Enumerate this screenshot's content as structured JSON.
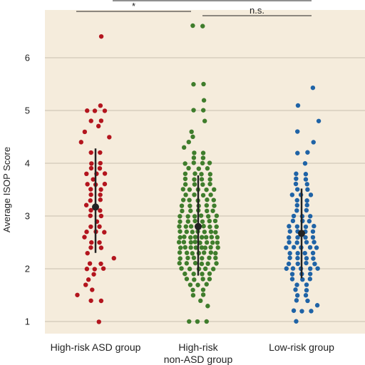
{
  "colors": {
    "plot_background": "#f5ecdc",
    "gridline": "#c9c0b0",
    "axis": "#222222",
    "summary_marker": "#222222"
  },
  "chart_data": {
    "type": "scatter",
    "subtype": "strip plot with mean ± SD",
    "title": "",
    "xlabel": "",
    "ylabel": "Average ISOP Score",
    "ylim": [
      0.85,
      6.95
    ],
    "yticks": [
      1,
      2,
      3,
      4,
      5,
      6
    ],
    "grid": true,
    "categories": [
      "High-risk ASD group",
      "High-risk non-ASD group",
      "Low-risk group"
    ],
    "category_label_lines": [
      [
        "High-risk ASD group"
      ],
      [
        "High-risk",
        "non-ASD group"
      ],
      [
        "Low-risk group"
      ]
    ],
    "series": [
      {
        "category": "High-risk ASD group",
        "color": "#b3151e",
        "mean": 3.17,
        "sd_low": 2.3,
        "sd_high": 4.28,
        "values": [
          6.4,
          5.1,
          5.0,
          5.0,
          5.0,
          4.8,
          4.8,
          4.7,
          4.6,
          4.5,
          4.4,
          4.2,
          4.2,
          4.0,
          4.0,
          3.9,
          3.9,
          3.8,
          3.8,
          3.8,
          3.7,
          3.6,
          3.6,
          3.6,
          3.5,
          3.5,
          3.4,
          3.4,
          3.3,
          3.3,
          3.2,
          3.1,
          3.1,
          3.0,
          3.0,
          2.9,
          2.8,
          2.8,
          2.7,
          2.7,
          2.7,
          2.6,
          2.5,
          2.5,
          2.4,
          2.4,
          2.3,
          2.2,
          2.1,
          2.1,
          2.0,
          2.0,
          2.0,
          1.9,
          1.8,
          1.7,
          1.6,
          1.5,
          1.4,
          1.4,
          1.0
        ]
      },
      {
        "category": "High-risk non-ASD group",
        "color": "#3f7d2c",
        "mean": 2.8,
        "sd_low": 1.87,
        "sd_high": 3.77,
        "values": [
          6.6,
          6.6,
          5.5,
          5.5,
          5.2,
          5.0,
          5.0,
          4.8,
          4.6,
          4.5,
          4.4,
          4.3,
          4.2,
          4.2,
          4.1,
          4.1,
          4.0,
          4.0,
          4.0,
          4.0,
          3.9,
          3.9,
          3.9,
          3.8,
          3.8,
          3.8,
          3.8,
          3.7,
          3.7,
          3.7,
          3.7,
          3.6,
          3.6,
          3.6,
          3.6,
          3.5,
          3.5,
          3.5,
          3.5,
          3.5,
          3.4,
          3.4,
          3.4,
          3.4,
          3.3,
          3.3,
          3.3,
          3.3,
          3.3,
          3.2,
          3.2,
          3.2,
          3.2,
          3.2,
          3.1,
          3.1,
          3.1,
          3.1,
          3.1,
          3.0,
          3.0,
          3.0,
          3.0,
          3.0,
          3.0,
          2.9,
          2.9,
          2.9,
          2.9,
          2.9,
          2.9,
          2.8,
          2.8,
          2.8,
          2.8,
          2.8,
          2.8,
          2.8,
          2.7,
          2.7,
          2.7,
          2.7,
          2.7,
          2.7,
          2.7,
          2.6,
          2.6,
          2.6,
          2.6,
          2.6,
          2.6,
          2.6,
          2.6,
          2.5,
          2.5,
          2.5,
          2.5,
          2.5,
          2.5,
          2.5,
          2.5,
          2.4,
          2.4,
          2.4,
          2.4,
          2.4,
          2.4,
          2.4,
          2.4,
          2.3,
          2.3,
          2.3,
          2.3,
          2.3,
          2.3,
          2.3,
          2.2,
          2.2,
          2.2,
          2.2,
          2.2,
          2.2,
          2.1,
          2.1,
          2.1,
          2.1,
          2.1,
          2.1,
          2.0,
          2.0,
          2.0,
          2.0,
          2.0,
          1.9,
          1.9,
          1.9,
          1.9,
          1.8,
          1.8,
          1.8,
          1.8,
          1.7,
          1.7,
          1.7,
          1.6,
          1.6,
          1.5,
          1.5,
          1.4,
          1.3,
          1.0,
          1.0,
          1.0
        ]
      },
      {
        "category": "Low-risk group",
        "color": "#1f63a6",
        "mean": 2.67,
        "sd_low": 1.82,
        "sd_high": 3.52,
        "values": [
          5.43,
          5.1,
          4.8,
          4.6,
          4.4,
          4.2,
          4.2,
          4.0,
          3.8,
          3.8,
          3.7,
          3.7,
          3.6,
          3.6,
          3.5,
          3.5,
          3.4,
          3.4,
          3.4,
          3.3,
          3.3,
          3.2,
          3.2,
          3.1,
          3.1,
          3.0,
          3.0,
          3.0,
          2.9,
          2.9,
          2.9,
          2.8,
          2.8,
          2.8,
          2.8,
          2.7,
          2.7,
          2.7,
          2.7,
          2.6,
          2.6,
          2.6,
          2.6,
          2.5,
          2.5,
          2.5,
          2.5,
          2.4,
          2.4,
          2.4,
          2.4,
          2.4,
          2.3,
          2.3,
          2.3,
          2.3,
          2.2,
          2.2,
          2.2,
          2.2,
          2.1,
          2.1,
          2.1,
          2.1,
          2.0,
          2.0,
          2.0,
          2.0,
          2.0,
          1.9,
          1.9,
          1.9,
          1.8,
          1.8,
          1.8,
          1.7,
          1.7,
          1.6,
          1.6,
          1.5,
          1.5,
          1.4,
          1.4,
          1.3,
          1.2,
          1.2,
          1.2,
          1.0
        ]
      }
    ],
    "significance": [
      {
        "from": "High-risk ASD group",
        "to": "High-risk non-ASD group",
        "label": "*"
      },
      {
        "from": "High-risk non-ASD group",
        "to": "Low-risk group",
        "label": "n.s."
      }
    ]
  }
}
